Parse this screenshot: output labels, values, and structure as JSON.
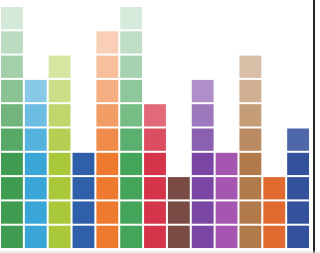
{
  "columns": [
    {
      "color": "#3f9b4f",
      "blocks": 10
    },
    {
      "color": "#3aa6d8",
      "blocks": 7
    },
    {
      "color": "#a9c83a",
      "blocks": 8
    },
    {
      "color": "#2f5fa8",
      "blocks": 4
    },
    {
      "color": "#ee7a30",
      "blocks": 9
    },
    {
      "color": "#44a45a",
      "blocks": 10
    },
    {
      "color": "#d6344a",
      "blocks": 6
    },
    {
      "color": "#7a4a44",
      "blocks": 3
    },
    {
      "color": "#7a48a4",
      "blocks": 7
    },
    {
      "color": "#a456b0",
      "blocks": 4
    },
    {
      "color": "#b07a4a",
      "blocks": 8
    },
    {
      "color": "#e06a30",
      "blocks": 3
    },
    {
      "color": "#34529c",
      "blocks": 5
    }
  ]
}
